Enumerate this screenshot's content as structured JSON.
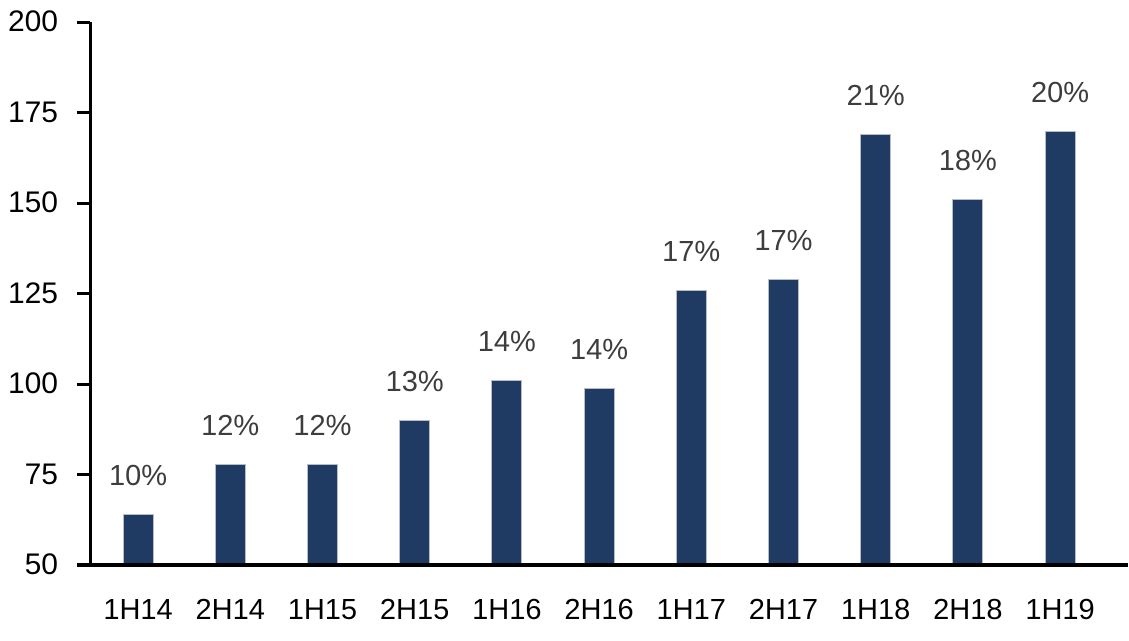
{
  "chart_data": {
    "type": "bar",
    "title": "",
    "xlabel": "",
    "ylabel": "",
    "categories": [
      "1H14",
      "2H14",
      "1H15",
      "2H15",
      "1H16",
      "2H16",
      "1H17",
      "2H17",
      "1H18",
      "2H18",
      "1H19"
    ],
    "values": [
      64,
      78,
      78,
      90,
      101,
      99,
      126,
      129,
      169,
      151,
      170
    ],
    "bar_labels": [
      "10%",
      "12%",
      "12%",
      "13%",
      "14%",
      "14%",
      "17%",
      "17%",
      "21%",
      "18%",
      "20%"
    ],
    "ylim": [
      50,
      200
    ],
    "yticks": [
      50,
      75,
      100,
      125,
      150,
      175,
      200
    ],
    "grid": false,
    "legend_position": "none",
    "colors": {
      "bar_fill": "#1f3a63",
      "bar_border": "#b5bcca",
      "value_label": "#3d3d3d",
      "axis_line": "#000000",
      "tick_label": "#000000",
      "background": "#ffffff"
    }
  }
}
